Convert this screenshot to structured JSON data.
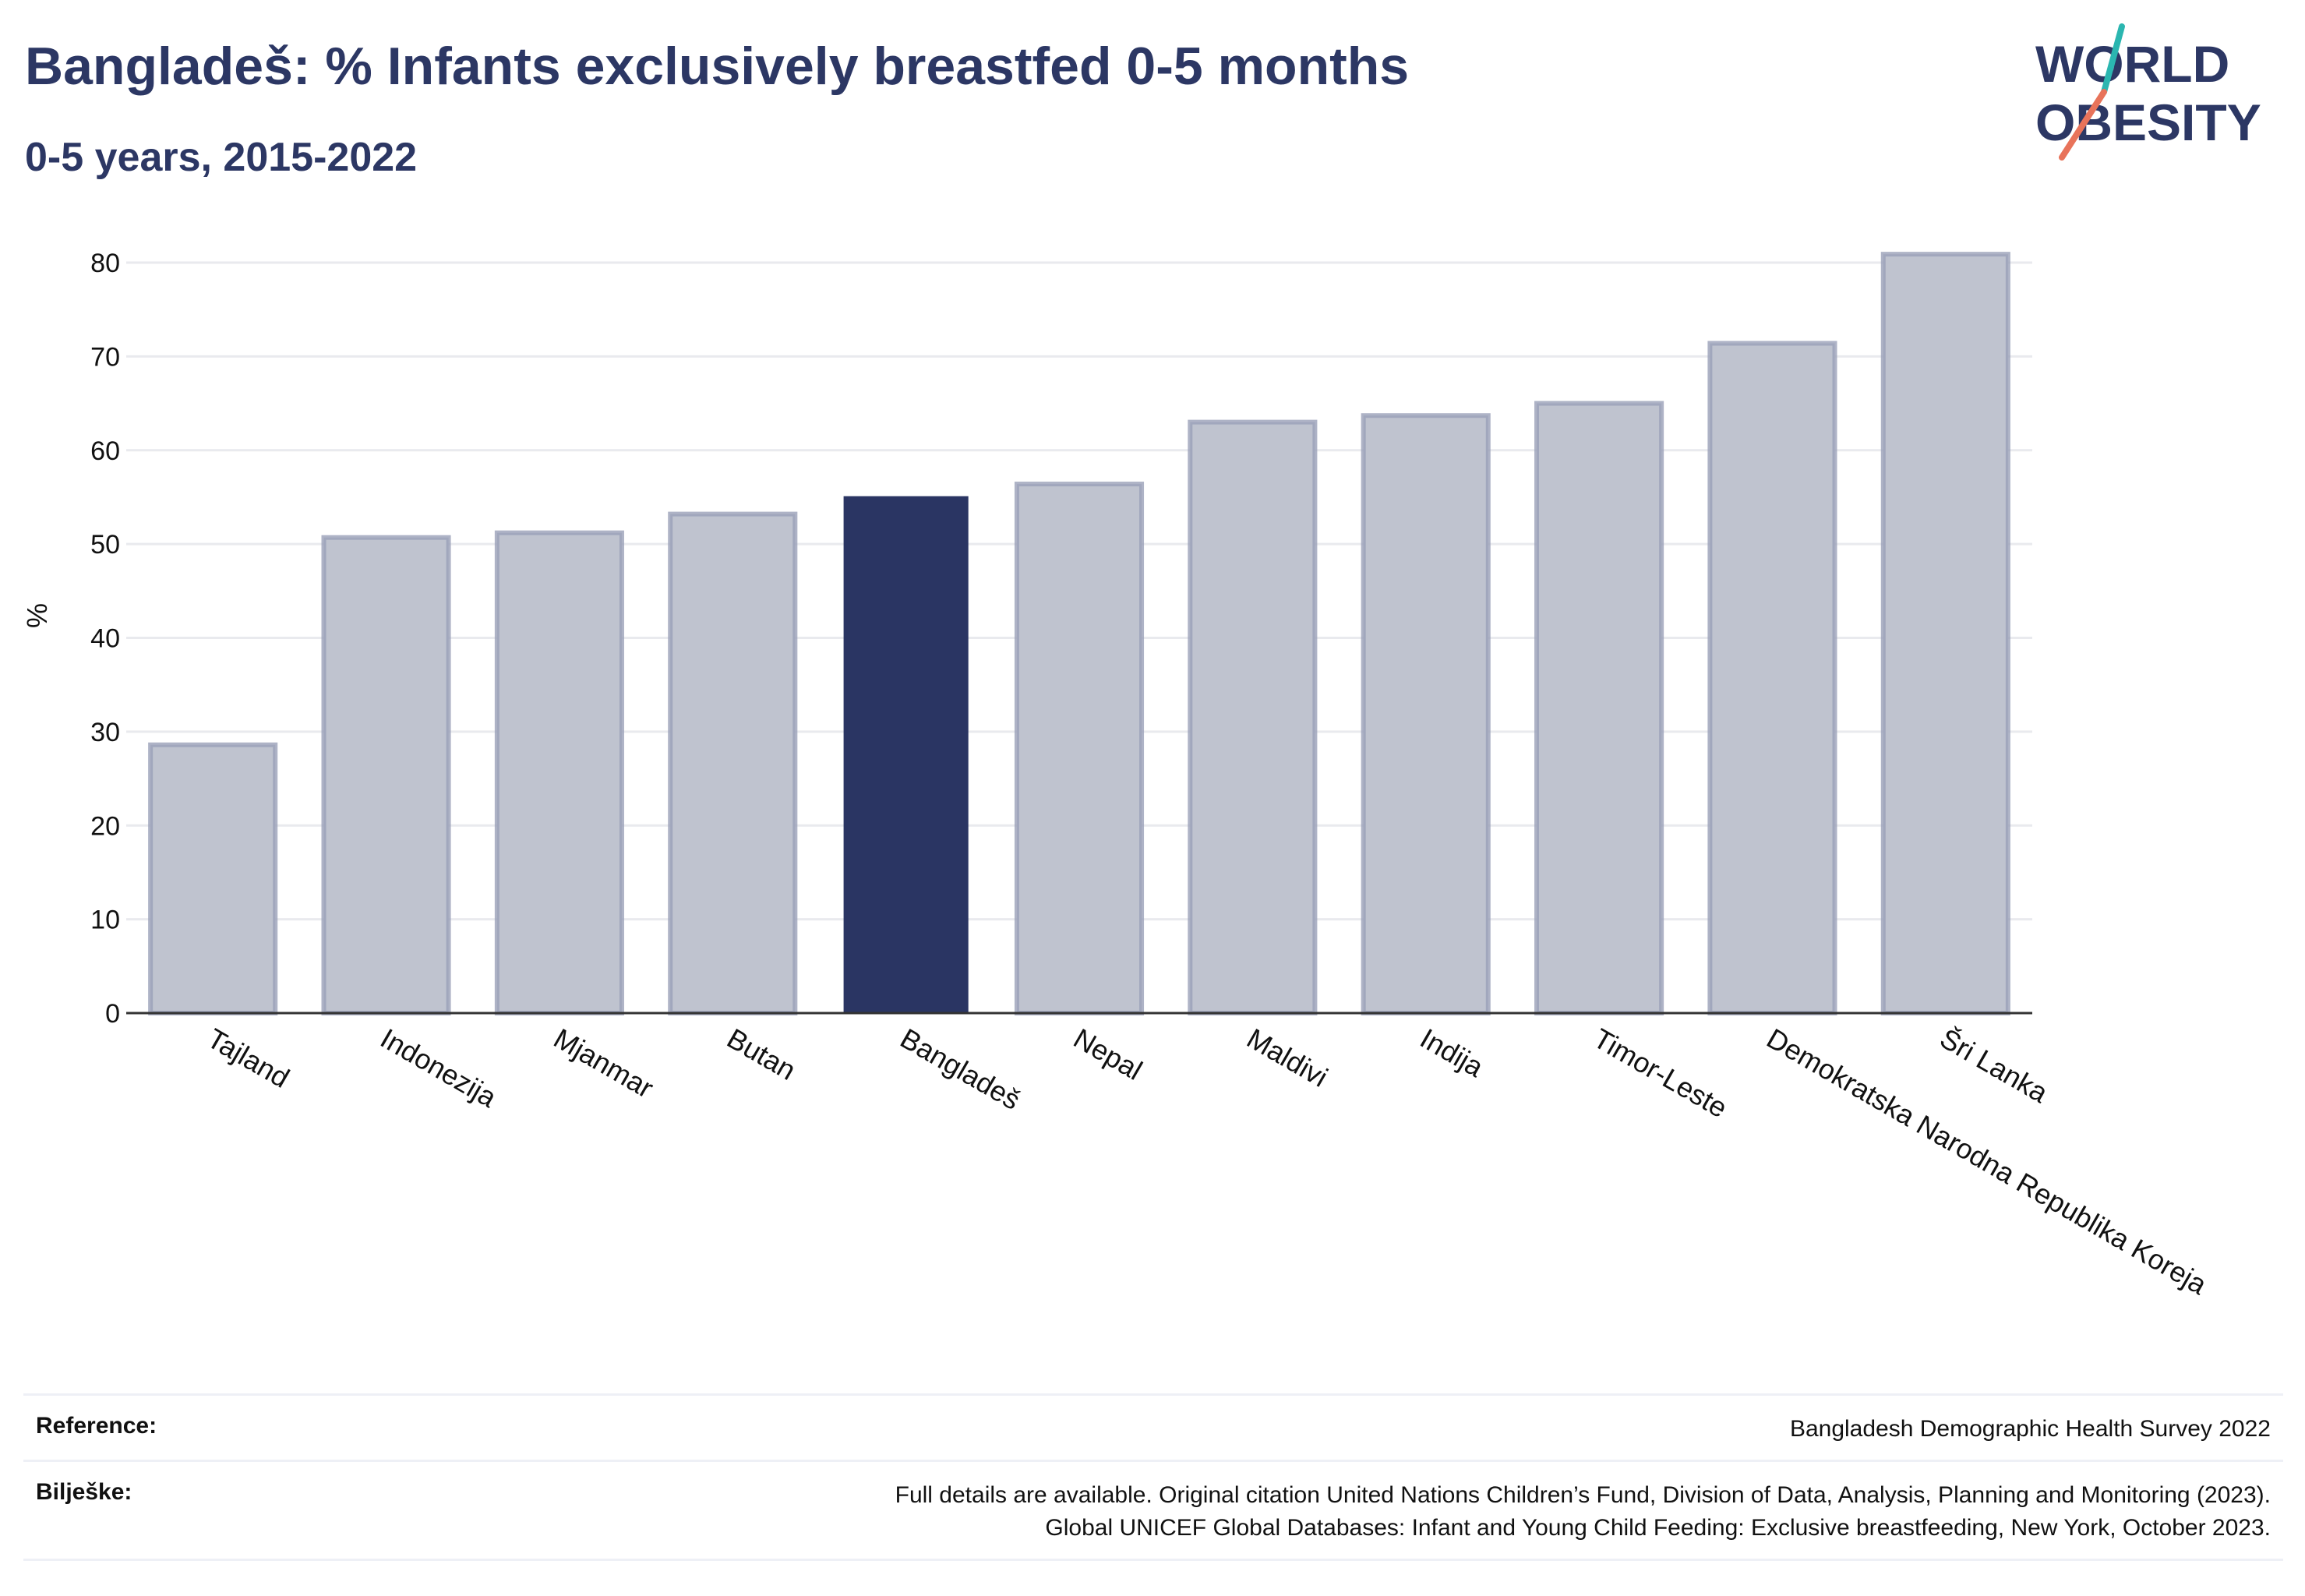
{
  "header": {
    "title": "Bangladeš: % Infants exclusively breastfed 0-5 months",
    "subtitle": "0-5 years, 2015-2022"
  },
  "logo": {
    "line1": "WORLD",
    "line2": "OBESITY",
    "slash_colors": [
      "#2bb6b0",
      "#e8735a"
    ]
  },
  "colors": {
    "highlight_bar": "#2a3563",
    "other_bar_fill": "#bfc3cf",
    "other_bar_stroke": "#9aa0b8",
    "grid": "#e9eaee",
    "axis": "#333333"
  },
  "chart_data": {
    "type": "bar",
    "ylabel": "%",
    "ylim": [
      0,
      80
    ],
    "yticks": [
      0,
      10,
      20,
      30,
      40,
      50,
      60,
      70,
      80
    ],
    "grid": true,
    "highlight": "Bangladeš",
    "categories": [
      "Tajland",
      "Indonezija",
      "Mjanmar",
      "Butan",
      "Bangladeš",
      "Nepal",
      "Maldivi",
      "Indija",
      "Timor-Leste",
      "Demokratska Narodna Republika Koreja",
      "Šri Lanka"
    ],
    "values": [
      28.6,
      50.7,
      51.2,
      53.2,
      55.1,
      56.4,
      63.0,
      63.7,
      65.0,
      71.4,
      80.9
    ]
  },
  "footer": {
    "reference_label": "Reference:",
    "reference_value": "Bangladesh Demographic Health Survey 2022",
    "notes_label": "Bilješke:",
    "notes_line1": "Full details are available. Original citation United Nations Children’s Fund, Division of Data, Analysis, Planning and Monitoring (2023).",
    "notes_line2": "Global UNICEF Global Databases: Infant and Young Child Feeding: Exclusive breastfeeding, New York, October 2023."
  }
}
